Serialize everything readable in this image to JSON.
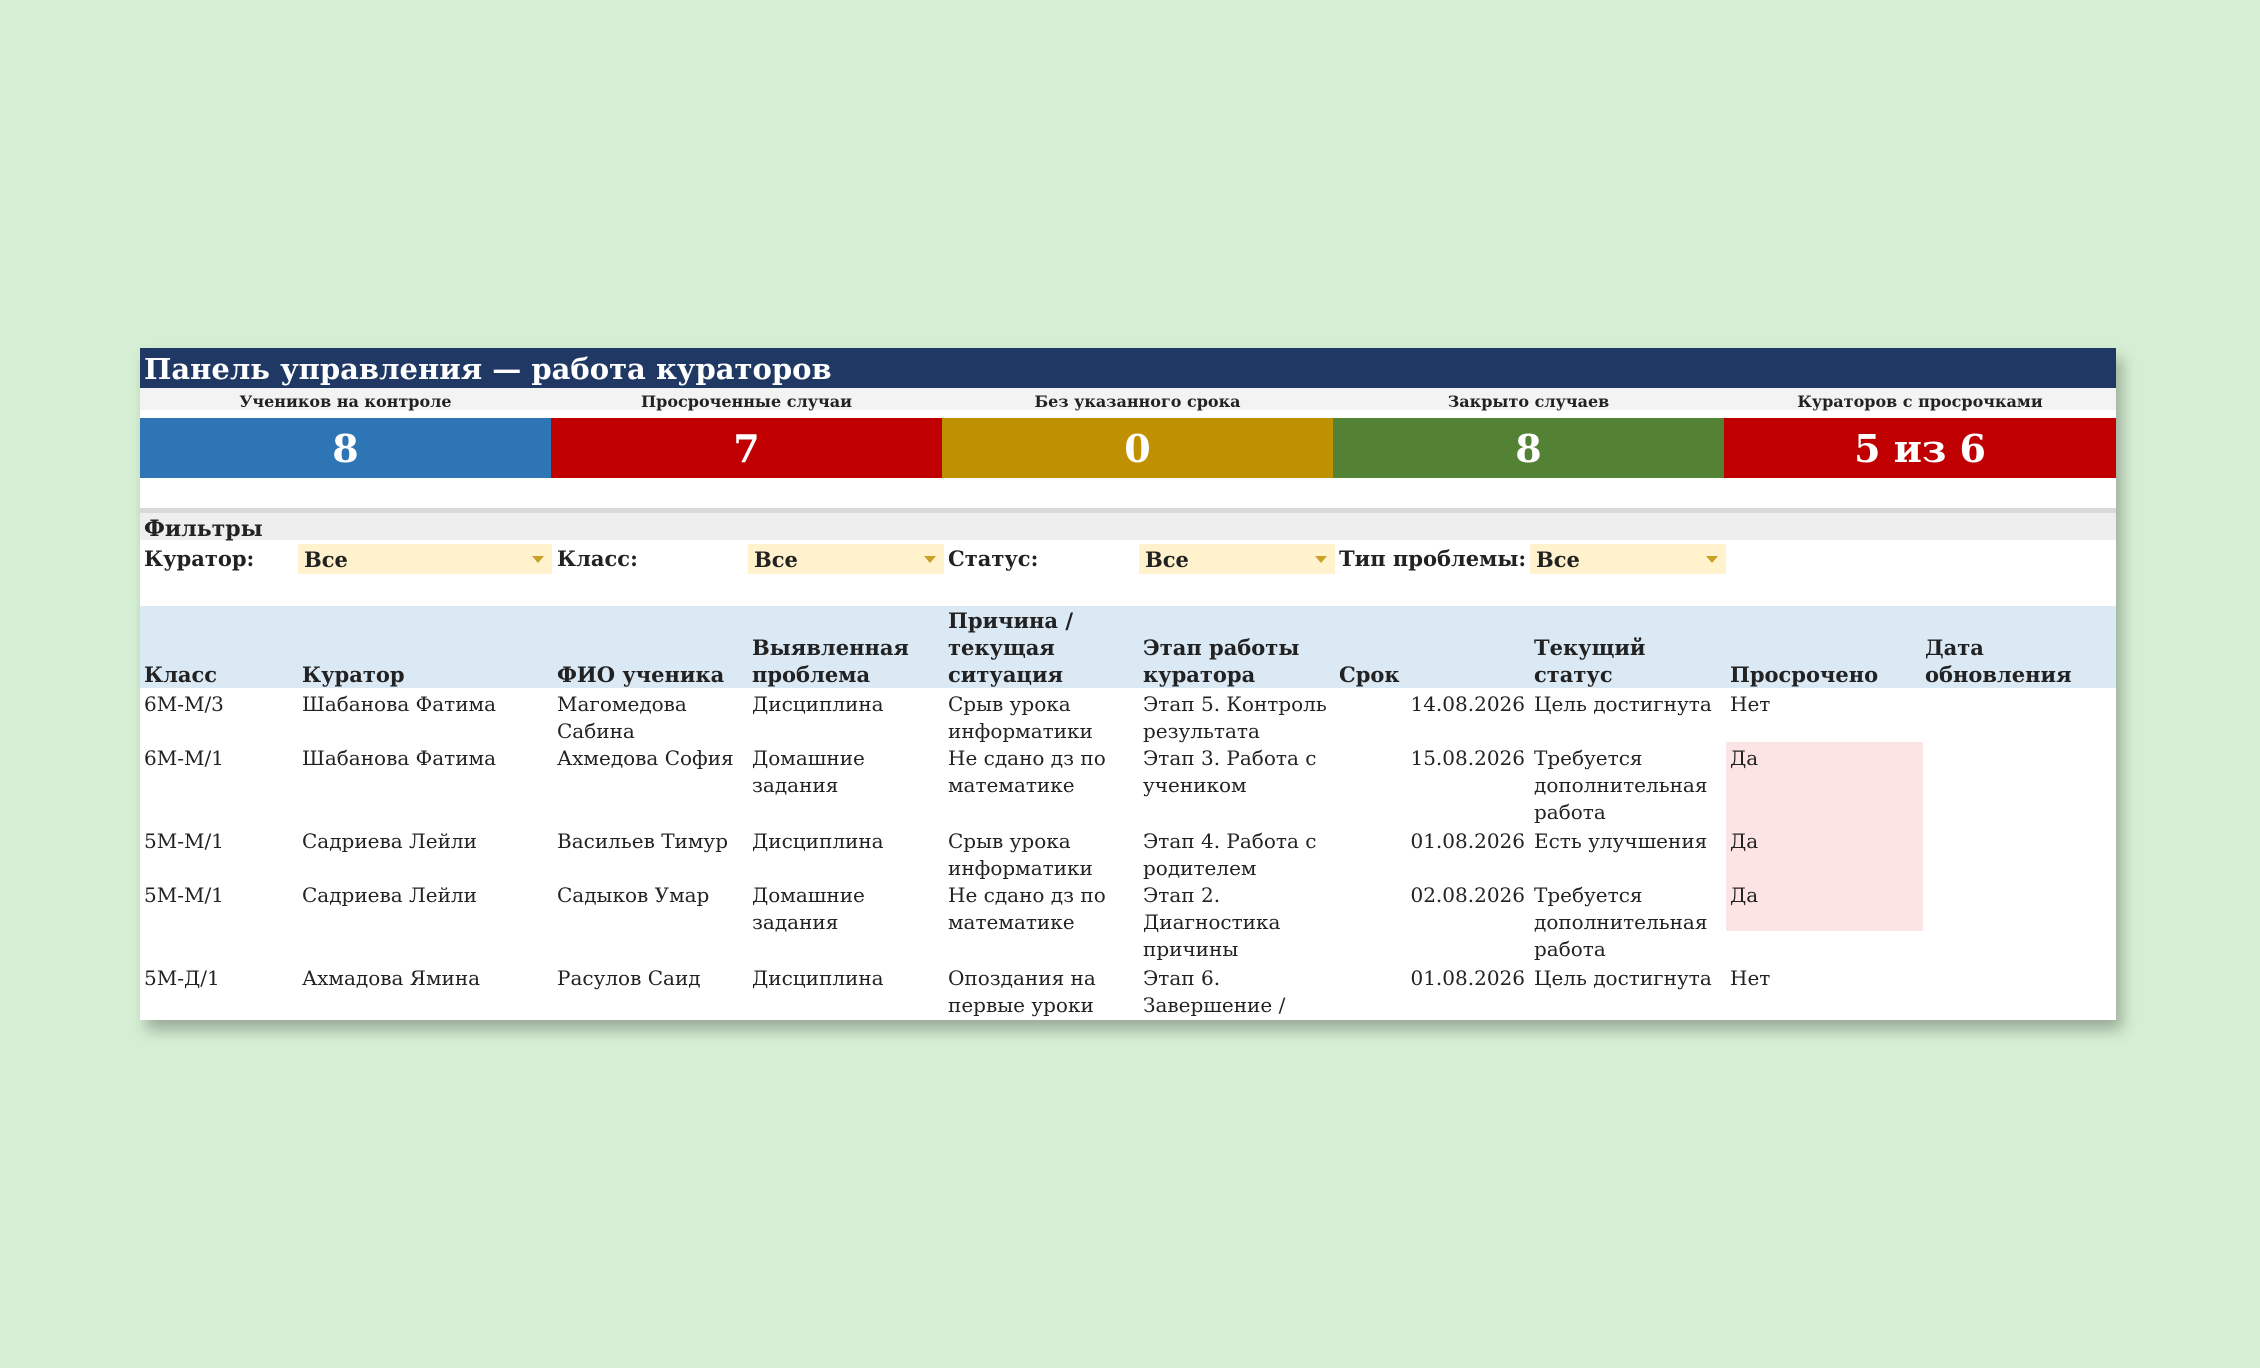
{
  "title": "Панель управления — работа кураторов",
  "kpis": [
    {
      "label": "Учеников на контроле",
      "value": "8",
      "color": "#2e75b6"
    },
    {
      "label": "Просроченные случаи",
      "value": "7",
      "color": "#c00000"
    },
    {
      "label": "Без указанного срока",
      "value": "0",
      "color": "#bf9000"
    },
    {
      "label": "Закрыто случаев",
      "value": "8",
      "color": "#548235"
    },
    {
      "label": "Кураторов с просрочками",
      "value": "5 из 6",
      "color": "#c00000"
    }
  ],
  "filters": {
    "title": "Фильтры",
    "items": [
      {
        "label": "Куратор:",
        "value": "Все"
      },
      {
        "label": "Класс:",
        "value": "Все"
      },
      {
        "label": "Статус:",
        "value": "Все"
      },
      {
        "label": "Тип проблемы:",
        "value": "Все"
      }
    ]
  },
  "table": {
    "columns": [
      "Класс",
      "Куратор",
      "ФИО ученика",
      "Выявленная проблема",
      "Причина / текущая ситуация",
      "Этап работы куратора",
      "Срок",
      "Текущий статус",
      "Просрочено",
      "Дата обновления"
    ],
    "rows": [
      [
        "6М-М/3",
        "Шабанова Фатима",
        "Магомедова Сабина",
        "Дисциплина",
        "Срыв урока информатики",
        "Этап 5. Контроль результата",
        "14.08.2026",
        "Цель достигнута",
        "Нет",
        ""
      ],
      [
        "6М-М/1",
        "Шабанова Фатима",
        "Ахмедова София",
        "Домашние задания",
        "Не сдано дз по математике",
        "Этап 3. Работа с учеником",
        "15.08.2026",
        "Требуется дополнительная работа",
        "Да",
        ""
      ],
      [
        "5М-М/1",
        "Садриева Лейли",
        "Васильев Тимур",
        "Дисциплина",
        "Срыв урока информатики",
        "Этап 4. Работа с родителем",
        "01.08.2026",
        "Есть улучшения",
        "Да",
        ""
      ],
      [
        "5М-М/1",
        "Садриева Лейли",
        "Садыков Умар",
        "Домашние задания",
        "Не сдано дз по математике",
        "Этап 2. Диагностика причины",
        "02.08.2026",
        "Требуется дополнительная работа",
        "Да",
        ""
      ],
      [
        "5М-Д/1",
        "Ахмадова Ямина",
        "Расулов Саид",
        "Дисциплина",
        "Опоздания на первые уроки",
        "Этап 6. Завершение /",
        "01.08.2026",
        "Цель достигнута",
        "Нет",
        ""
      ]
    ]
  }
}
